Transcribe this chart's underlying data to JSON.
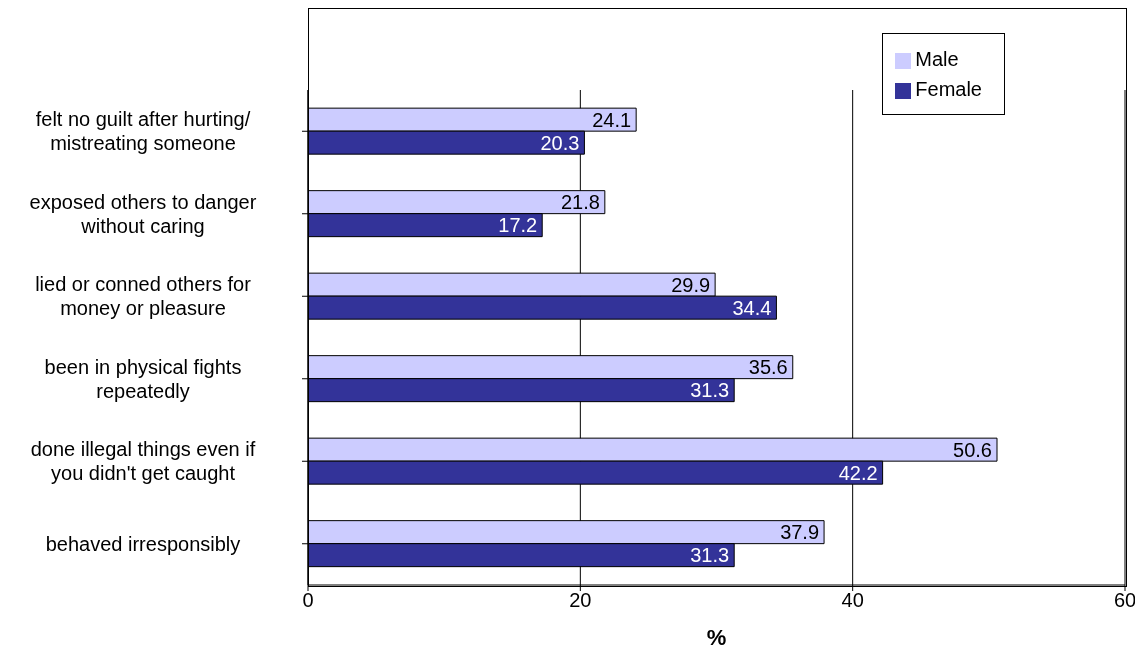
{
  "chart_data": {
    "type": "bar",
    "orientation": "horizontal",
    "xlabel": "%",
    "categories": [
      "felt no guilt after hurting/ mistreating someone",
      "exposed others to danger without caring",
      "lied or conned others for money or pleasure",
      "been in physical fights repeatedly",
      "done illegal things even if you didn't get caught",
      "behaved irresponsibly"
    ],
    "series": [
      {
        "name": "Male",
        "color": "#ccccff",
        "values": [
          24.1,
          21.8,
          29.9,
          35.6,
          50.6,
          37.9
        ]
      },
      {
        "name": "Female",
        "color": "#333399",
        "values": [
          20.3,
          17.2,
          34.4,
          31.3,
          42.2,
          31.3
        ]
      }
    ],
    "xlim": [
      0,
      60
    ],
    "xticks": [
      0,
      20,
      40,
      60
    ],
    "grid": "x",
    "legend": "top right",
    "data_labels": true
  }
}
